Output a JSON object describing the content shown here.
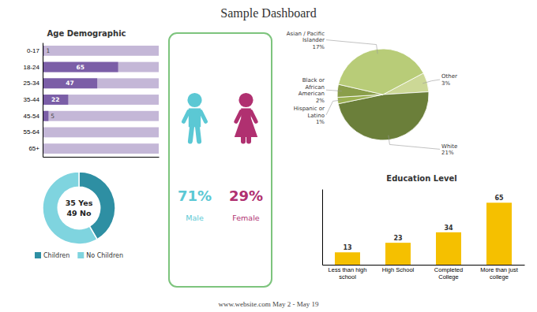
{
  "title": "Sample Dashboard",
  "annotations": [
    "www.website.com May 2 - May 19"
  ],
  "chart_data": [
    {
      "type": "bar",
      "orientation": "horizontal",
      "title": "Age Demographic",
      "categories": [
        "0-17",
        "18-24",
        "25-34",
        "35-44",
        "45-54",
        "55-64",
        "65+"
      ],
      "values": [
        1,
        65,
        47,
        22,
        5,
        0,
        0
      ],
      "value_labels": [
        "1",
        "65",
        "47",
        "22",
        "5",
        null,
        null
      ],
      "color": "#7b5ea7",
      "xlim": [
        0,
        100
      ],
      "xticks": [],
      "tick_labels": "y",
      "data_labels": true
    },
    {
      "type": "donut",
      "categories": [
        "Children",
        "No Children"
      ],
      "values": [
        35,
        49
      ],
      "value_labels": [
        "35 Yes",
        "49 No"
      ],
      "colors": [
        "#2e8fa3",
        "#7fd4df"
      ],
      "legend": "bottom",
      "data_labels": true
    },
    {
      "type": "pictogram",
      "categories": [
        "Male",
        "Female"
      ],
      "values": [
        71,
        29
      ],
      "value_labels": [
        "71%",
        "29%"
      ],
      "colors": [
        "#5bc8d4",
        "#b03070"
      ],
      "color": "#7dc47d",
      "data_labels": true
    },
    {
      "type": "pie",
      "categories": [
        "Other",
        "White",
        "Hispanic or\nLatino",
        "Black or\nAfrican\nAmerican",
        "Asian / Pacific\nIslander"
      ],
      "values": [
        3,
        21,
        1,
        2,
        17
      ],
      "value_labels": [
        "3%",
        "21%",
        "1%",
        "2%",
        "17%"
      ],
      "colors": [
        "#ccd896",
        "#6b7f3a",
        "#9ab050",
        "#8a9e4a",
        "#b8cc78"
      ],
      "data_labels": true
    },
    {
      "type": "bar",
      "title": "Education Level",
      "categories": [
        "Less than high\nschool",
        "High School",
        "Completed\nCollege",
        "More than just\ncollege"
      ],
      "values": [
        13,
        23,
        34,
        65
      ],
      "color": "#f5c000",
      "ylim": [
        0,
        79.3
      ],
      "yticks": [],
      "tick_labels": "x",
      "data_labels": true
    }
  ]
}
